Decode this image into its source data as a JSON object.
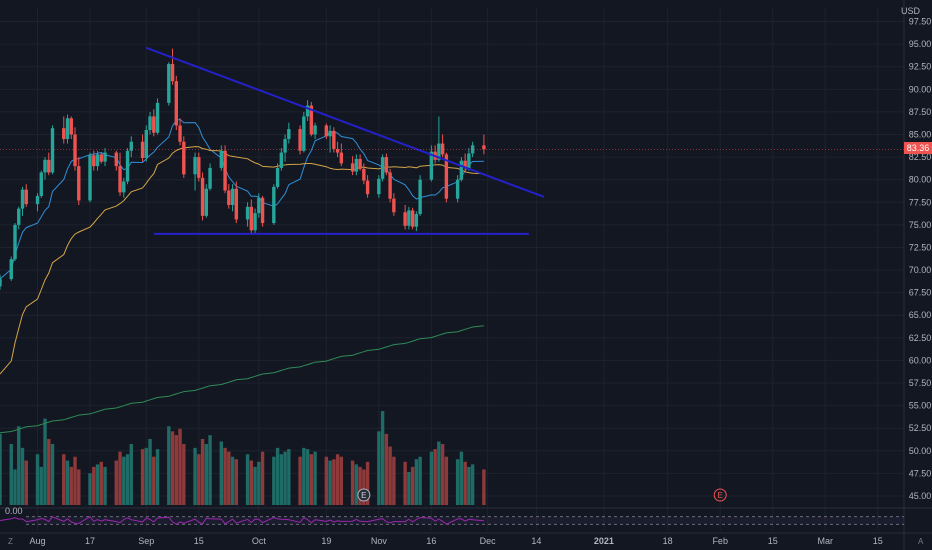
{
  "currency": "USD",
  "last_price": "83.36",
  "oscillator_value": "0.00",
  "footer": {
    "left_label": "Z",
    "right_label": "A"
  },
  "colors": {
    "background": "#131722",
    "grid": "#1e222d",
    "up": "#26a69a",
    "down": "#ef5350",
    "volume_up": "#1f6b65",
    "volume_down": "#8f3a3a",
    "trendline": "#2421c9",
    "sma_short": "#2f8fd8",
    "sma_mid": "#d4a545",
    "sma_long": "#2e8b57",
    "osc_line": "#9c27b0",
    "price_badge": "#ef5350"
  },
  "chart_data": {
    "type": "candlestick",
    "symbol_currency": "USD",
    "ylim": [
      44,
      99
    ],
    "price_ticks": [
      "45.00",
      "47.50",
      "50.00",
      "52.50",
      "55.00",
      "57.50",
      "60.00",
      "62.50",
      "65.00",
      "67.50",
      "70.00",
      "72.50",
      "75.00",
      "77.50",
      "80.00",
      "82.50",
      "85.00",
      "87.50",
      "90.00",
      "92.50",
      "95.00",
      "97.50"
    ],
    "x_ticks": [
      {
        "label": "Aug",
        "date": "2020-08-03"
      },
      {
        "label": "17",
        "date": "2020-08-17"
      },
      {
        "label": "Sep",
        "date": "2020-09-01"
      },
      {
        "label": "15",
        "date": "2020-09-15"
      },
      {
        "label": "Oct",
        "date": "2020-10-01"
      },
      {
        "label": "19",
        "date": "2020-10-19"
      },
      {
        "label": "Nov",
        "date": "2020-11-02"
      },
      {
        "label": "16",
        "date": "2020-11-16"
      },
      {
        "label": "Dec",
        "date": "2020-12-01"
      },
      {
        "label": "14",
        "date": "2020-12-14"
      },
      {
        "label": "2021",
        "date": "2021-01-01"
      },
      {
        "label": "18",
        "date": "2021-01-18"
      },
      {
        "label": "Feb",
        "date": "2021-02-01"
      },
      {
        "label": "15",
        "date": "2021-02-15"
      },
      {
        "label": "Mar",
        "date": "2021-03-01"
      },
      {
        "label": "15",
        "date": "2021-03-15"
      }
    ],
    "ohlc": [
      [
        68.2,
        69.5,
        67.8,
        69.0
      ],
      [
        69.0,
        71.5,
        68.8,
        71.2
      ],
      [
        71.2,
        75.2,
        71.0,
        75.0
      ],
      [
        75.0,
        77.0,
        74.5,
        76.8
      ],
      [
        76.8,
        79.2,
        76.0,
        78.9
      ],
      [
        78.9,
        79.5,
        77.0,
        77.3
      ],
      [
        77.3,
        78.5,
        76.5,
        78.2
      ],
      [
        78.2,
        81.0,
        78.0,
        80.8
      ],
      [
        80.8,
        82.5,
        80.0,
        82.2
      ],
      [
        82.2,
        83.0,
        80.5,
        80.8
      ],
      [
        80.8,
        86.0,
        80.6,
        85.7
      ],
      [
        85.7,
        87.0,
        84.0,
        84.5
      ],
      [
        84.5,
        87.2,
        84.0,
        86.8
      ],
      [
        86.8,
        87.0,
        84.5,
        85.0
      ],
      [
        85.0,
        85.8,
        81.0,
        81.5
      ],
      [
        81.5,
        82.5,
        77.2,
        77.7
      ],
      [
        77.7,
        83.0,
        77.5,
        82.7
      ],
      [
        82.7,
        83.2,
        81.0,
        81.5
      ],
      [
        81.5,
        83.2,
        81.0,
        82.8
      ],
      [
        82.8,
        83.0,
        81.8,
        82.0
      ],
      [
        82.0,
        83.5,
        81.5,
        83.0
      ],
      [
        83.0,
        83.2,
        81.0,
        81.5
      ],
      [
        81.5,
        83.0,
        78.2,
        78.6
      ],
      [
        78.6,
        80.2,
        78.0,
        79.8
      ],
      [
        79.8,
        83.5,
        79.5,
        83.2
      ],
      [
        83.2,
        84.8,
        82.5,
        84.2
      ],
      [
        84.2,
        85.0,
        82.0,
        82.4
      ],
      [
        82.4,
        86.0,
        82.0,
        85.5
      ],
      [
        85.5,
        87.5,
        85.0,
        87.0
      ],
      [
        87.0,
        87.8,
        84.8,
        85.2
      ],
      [
        85.2,
        89.0,
        85.0,
        88.5
      ],
      [
        88.5,
        93.0,
        88.2,
        92.8
      ],
      [
        92.8,
        94.5,
        90.5,
        90.9
      ],
      [
        90.9,
        91.5,
        85.5,
        86.0
      ],
      [
        86.0,
        86.8,
        83.8,
        84.2
      ],
      [
        84.2,
        84.8,
        80.2,
        80.6
      ],
      [
        80.6,
        83.0,
        78.8,
        82.5
      ],
      [
        82.5,
        83.0,
        79.8,
        80.2
      ],
      [
        80.2,
        80.8,
        75.5,
        76.0
      ],
      [
        76.0,
        79.5,
        75.8,
        79.0
      ],
      [
        79.0,
        81.8,
        78.8,
        81.3
      ],
      [
        81.3,
        83.8,
        81.0,
        83.2
      ],
      [
        83.2,
        83.8,
        78.5,
        78.8
      ],
      [
        78.8,
        79.5,
        76.8,
        77.2
      ],
      [
        77.2,
        79.5,
        76.5,
        79.0
      ],
      [
        79.0,
        79.8,
        75.2,
        75.6
      ],
      [
        75.6,
        77.5,
        74.8,
        77.0
      ],
      [
        77.0,
        77.8,
        74.0,
        74.4
      ],
      [
        74.4,
        76.8,
        74.0,
        76.3
      ],
      [
        76.3,
        78.5,
        75.8,
        78.0
      ],
      [
        78.0,
        78.2,
        74.8,
        75.2
      ],
      [
        75.2,
        79.5,
        75.0,
        79.2
      ],
      [
        79.2,
        81.8,
        79.0,
        81.3
      ],
      [
        81.3,
        83.5,
        81.0,
        83.0
      ],
      [
        83.0,
        85.0,
        82.0,
        84.5
      ],
      [
        84.5,
        86.3,
        84.0,
        85.6
      ],
      [
        85.6,
        86.0,
        82.8,
        83.2
      ],
      [
        83.2,
        87.5,
        83.0,
        87.0
      ],
      [
        87.0,
        88.8,
        86.5,
        88.2
      ],
      [
        88.2,
        88.6,
        84.8,
        85.0
      ],
      [
        85.0,
        86.3,
        84.5,
        86.0
      ],
      [
        86.0,
        86.2,
        84.5,
        84.8
      ],
      [
        84.8,
        86.0,
        83.0,
        85.4
      ],
      [
        85.4,
        85.8,
        83.0,
        83.4
      ],
      [
        83.4,
        84.2,
        82.5,
        83.0
      ],
      [
        83.0,
        84.0,
        81.5,
        81.8
      ],
      [
        81.8,
        82.6,
        80.5,
        80.9
      ],
      [
        80.9,
        82.8,
        80.5,
        82.3
      ],
      [
        82.3,
        82.8,
        81.0,
        81.2
      ],
      [
        81.2,
        81.8,
        79.5,
        79.9
      ],
      [
        79.9,
        80.5,
        78.0,
        78.4
      ],
      [
        78.4,
        80.5,
        78.0,
        80.1
      ],
      [
        80.1,
        82.8,
        79.8,
        82.5
      ],
      [
        82.5,
        82.9,
        80.5,
        80.8
      ],
      [
        80.8,
        81.2,
        77.5,
        77.9
      ],
      [
        77.9,
        78.5,
        76.0,
        76.4
      ],
      [
        76.4,
        77.2,
        74.5,
        74.9
      ],
      [
        74.9,
        77.0,
        74.5,
        76.6
      ],
      [
        76.6,
        76.9,
        74.5,
        74.8
      ],
      [
        74.8,
        76.5,
        74.3,
        76.2
      ],
      [
        76.2,
        80.5,
        76.0,
        80.0
      ],
      [
        80.0,
        83.8,
        79.8,
        83.1
      ],
      [
        83.1,
        83.8,
        81.8,
        82.2
      ],
      [
        82.2,
        87.0,
        82.0,
        84.0
      ],
      [
        84.0,
        85.0,
        82.5,
        82.8
      ],
      [
        82.8,
        83.0,
        77.5,
        77.9
      ],
      [
        77.9,
        80.5,
        77.5,
        80.0
      ],
      [
        80.0,
        82.5,
        79.8,
        82.1
      ],
      [
        82.1,
        82.9,
        80.8,
        81.3
      ],
      [
        81.3,
        83.5,
        81.0,
        82.9
      ],
      [
        82.9,
        84.2,
        82.5,
        83.8
      ],
      [
        83.8,
        85.0,
        82.8,
        83.36
      ]
    ],
    "volume_max": 100,
    "volume": [
      56,
      48,
      28,
      62,
      45,
      35,
      40,
      30,
      68,
      52,
      48,
      40,
      35,
      30,
      38,
      28,
      25,
      30,
      32,
      34,
      30,
      35,
      42,
      38,
      40,
      48,
      44,
      45,
      52,
      38,
      44,
      62,
      58,
      55,
      60,
      48,
      45,
      40,
      52,
      48,
      55,
      50,
      45,
      42,
      38,
      36,
      40,
      35,
      30,
      34,
      42,
      38,
      45,
      40,
      42,
      44,
      38,
      45,
      44,
      40,
      42,
      38,
      35,
      36,
      40,
      38,
      35,
      32,
      30,
      28,
      34,
      58,
      74,
      56,
      46,
      38,
      34,
      26,
      30,
      36,
      38,
      42,
      44,
      50,
      48,
      38,
      36,
      42,
      34,
      30,
      32,
      28
    ],
    "oscillator": {
      "value": "0.00",
      "ylim": [
        0,
        100
      ],
      "bands": [
        30,
        70
      ]
    },
    "annotations": [
      {
        "type": "earnings",
        "label": "E",
        "date": "2020-10-29"
      },
      {
        "type": "earnings",
        "label": "E",
        "date": "2021-02-01"
      }
    ]
  }
}
